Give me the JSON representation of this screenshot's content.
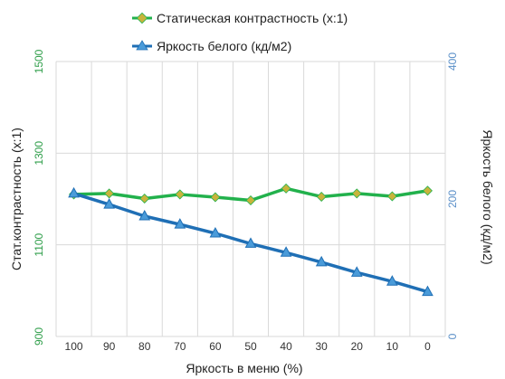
{
  "chart_data": {
    "type": "line",
    "categories": [
      "100",
      "90",
      "80",
      "70",
      "60",
      "50",
      "40",
      "30",
      "20",
      "10",
      "0"
    ],
    "xlabel": "Яркость в меню (%)",
    "ylabel_left": "Стат.контрастность  (x:1)",
    "ylabel_right": "Яркость белого (кд/м2)",
    "ylim_left": [
      900,
      1500
    ],
    "ylim_right": [
      0,
      400
    ],
    "yticks_left": [
      "900",
      "1100",
      "1300",
      "1500"
    ],
    "yticks_right": [
      "0",
      "200",
      "400"
    ],
    "grid": true,
    "legend_position": "top",
    "series": [
      {
        "name": "Статическая контрастность  (x:1)",
        "axis": "left",
        "color": "#22b14c",
        "marker": "diamond",
        "marker_color": "#c8b43c",
        "values": [
          1210,
          1212,
          1201,
          1210,
          1204,
          1197,
          1223,
          1205,
          1212,
          1206,
          1218
        ]
      },
      {
        "name": "Яркость белого (кд/м2)",
        "axis": "right",
        "color": "#1f6fb5",
        "marker": "triangle",
        "marker_color": "#4a9bd9",
        "values": [
          208,
          192,
          175,
          163,
          150,
          135,
          122,
          108,
          93,
          80,
          65
        ]
      }
    ]
  },
  "colors": {
    "left_axis_tick": "#2f9e4a",
    "right_axis_tick": "#5a8fc8",
    "grid": "#d9d9d9"
  }
}
